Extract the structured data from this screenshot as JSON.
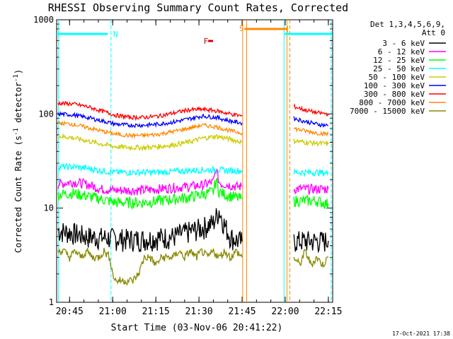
{
  "chart_data": {
    "type": "line",
    "title": "RHESSI Observing Summary Count Rates, Corrected",
    "xlabel": "Start Time (03-Nov-06 20:41:22)",
    "ylabel": "Corrected Count Rate (s⁻¹ detector⁻¹)",
    "ylabel_parts": [
      "Corrected Count Rate (s",
      "-1",
      " detector",
      "-1",
      ")"
    ],
    "y_scale": "log",
    "ylim": [
      1,
      1000
    ],
    "xlim_minutes_after_2041": [
      -0.5,
      95.5
    ],
    "x_ticks": [
      {
        "label": "20:45",
        "min": 4
      },
      {
        "label": "21:00",
        "min": 19
      },
      {
        "label": "21:15",
        "min": 34
      },
      {
        "label": "21:30",
        "min": 49
      },
      {
        "label": "21:45",
        "min": 64
      },
      {
        "label": "22:00",
        "min": 79
      },
      {
        "label": "22:15",
        "min": 94
      }
    ],
    "y_ticks": [
      {
        "label": "1",
        "v": 1
      },
      {
        "label": "10",
        "v": 10
      },
      {
        "label": "100",
        "v": 100
      },
      {
        "label": "1000",
        "v": 1000
      }
    ],
    "legend_header": [
      "Det 1,3,4,5,6,9,",
      "Att 0"
    ],
    "legend_placement": "right",
    "series": [
      {
        "name": "3 - 6 keV",
        "color": "#000000",
        "x": [
          0,
          5,
          10,
          15,
          20,
          25,
          30,
          35,
          40,
          45,
          50,
          52,
          54,
          56,
          58,
          60,
          62,
          64,
          65,
          80,
          82,
          86,
          90,
          94
        ],
        "y": [
          5.8,
          5.5,
          5.0,
          4.9,
          4.8,
          4.7,
          4.7,
          4.9,
          5.0,
          5.6,
          6.2,
          6.6,
          7.0,
          9.5,
          6.5,
          5.0,
          4.6,
          4.4,
          null,
          null,
          4.5,
          4.5,
          4.5,
          4.5
        ]
      },
      {
        "name": "6 - 12 keV",
        "color": "#ff00ff",
        "x": [
          0,
          5,
          10,
          15,
          20,
          25,
          30,
          35,
          40,
          45,
          50,
          54,
          55,
          56,
          57,
          58,
          62,
          64,
          65,
          80,
          82,
          86,
          90,
          94
        ],
        "y": [
          18,
          19,
          18,
          16,
          15.5,
          15.5,
          15.5,
          16,
          16.5,
          17,
          17.5,
          19,
          26,
          19,
          18,
          18,
          17,
          17,
          null,
          null,
          16,
          16,
          16,
          16
        ]
      },
      {
        "name": "12 - 25 keV",
        "color": "#00ff00",
        "x": [
          0,
          5,
          10,
          15,
          20,
          25,
          30,
          35,
          40,
          45,
          50,
          54,
          55,
          56,
          57,
          58,
          62,
          64,
          65,
          80,
          82,
          86,
          90,
          94
        ],
        "y": [
          14,
          14.5,
          13.5,
          12.5,
          11.5,
          11.5,
          11.5,
          12,
          12.5,
          13,
          14,
          15,
          20,
          15,
          14.5,
          14,
          13,
          12.5,
          null,
          null,
          12,
          12,
          12,
          11
        ]
      },
      {
        "name": "25 - 50 keV",
        "color": "#00ffff",
        "x": [
          0,
          5,
          10,
          15,
          20,
          25,
          30,
          35,
          40,
          45,
          50,
          55,
          60,
          64,
          65,
          80,
          82,
          86,
          90,
          94
        ],
        "y": [
          27.5,
          27.5,
          26.5,
          25,
          24,
          24,
          24,
          24,
          24.5,
          25,
          25.5,
          25.5,
          25,
          25,
          null,
          null,
          24,
          24,
          24,
          23.5
        ]
      },
      {
        "name": "50 - 100 keV",
        "color": "#cccc00",
        "x": [
          0,
          5,
          10,
          15,
          20,
          25,
          30,
          35,
          40,
          45,
          50,
          55,
          60,
          64,
          65,
          80,
          82,
          86,
          90,
          94
        ],
        "y": [
          58,
          56,
          52,
          48,
          45,
          44,
          44,
          45,
          47,
          50,
          55,
          58,
          54,
          50,
          null,
          null,
          52,
          50,
          49,
          48
        ]
      },
      {
        "name": "100 - 300 keV",
        "color": "#0000ff",
        "x": [
          0,
          5,
          10,
          15,
          20,
          25,
          30,
          35,
          40,
          45,
          50,
          55,
          60,
          64,
          65,
          80,
          82,
          86,
          90,
          94
        ],
        "y": [
          100,
          98,
          92,
          85,
          78,
          76,
          76,
          78,
          82,
          88,
          95,
          92,
          84,
          80,
          null,
          null,
          90,
          83,
          78,
          75
        ]
      },
      {
        "name": "300 - 800 keV",
        "color": "#ff0000",
        "x": [
          0,
          5,
          10,
          15,
          20,
          25,
          30,
          35,
          40,
          45,
          50,
          55,
          60,
          64,
          65,
          80,
          82,
          86,
          90,
          94
        ],
        "y": [
          130,
          128,
          120,
          108,
          97,
          92,
          92,
          95,
          102,
          110,
          112,
          108,
          100,
          95,
          null,
          null,
          120,
          110,
          103,
          100
        ]
      },
      {
        "name": "800 - 7000 keV",
        "color": "#ff8800",
        "x": [
          0,
          5,
          10,
          15,
          20,
          25,
          30,
          35,
          40,
          45,
          50,
          55,
          60,
          64,
          65,
          80,
          82,
          86,
          90,
          94
        ],
        "y": [
          80,
          78,
          72,
          66,
          61,
          59,
          59,
          61,
          65,
          70,
          76,
          73,
          66,
          63,
          null,
          null,
          70,
          66,
          63,
          61
        ]
      },
      {
        "name": "7000 - 15000 keV",
        "color": "#888800",
        "x": [
          0,
          2,
          4,
          6,
          8,
          10,
          12,
          14,
          16,
          18,
          19,
          20,
          26,
          28,
          30,
          32,
          34,
          36,
          38,
          40,
          42,
          44,
          46,
          48,
          50,
          52,
          54,
          56,
          58,
          60,
          62,
          64,
          65,
          80,
          82,
          84,
          86,
          88,
          90,
          92,
          94
        ],
        "y": [
          3.5,
          3.5,
          3.0,
          3.5,
          3.0,
          3.5,
          3.0,
          3.0,
          3.5,
          3.0,
          2.0,
          1.7,
          1.7,
          2.0,
          3.0,
          3.0,
          2.5,
          3.0,
          3.0,
          3.0,
          3.5,
          3.0,
          3.5,
          3.0,
          3.5,
          3.0,
          3.5,
          3.0,
          3.5,
          3.0,
          3.5,
          3.0,
          null,
          null,
          3.0,
          2.5,
          3.5,
          2.5,
          3.0,
          2.5,
          3.0
        ]
      }
    ],
    "annotations": [
      {
        "text": "N",
        "color": "#00ffff"
      },
      {
        "text": "F",
        "color": "#cc0000"
      },
      {
        "text": "S",
        "color": "#ff8800"
      }
    ],
    "footer_timestamp": "17-Oct-2021 17:38"
  }
}
